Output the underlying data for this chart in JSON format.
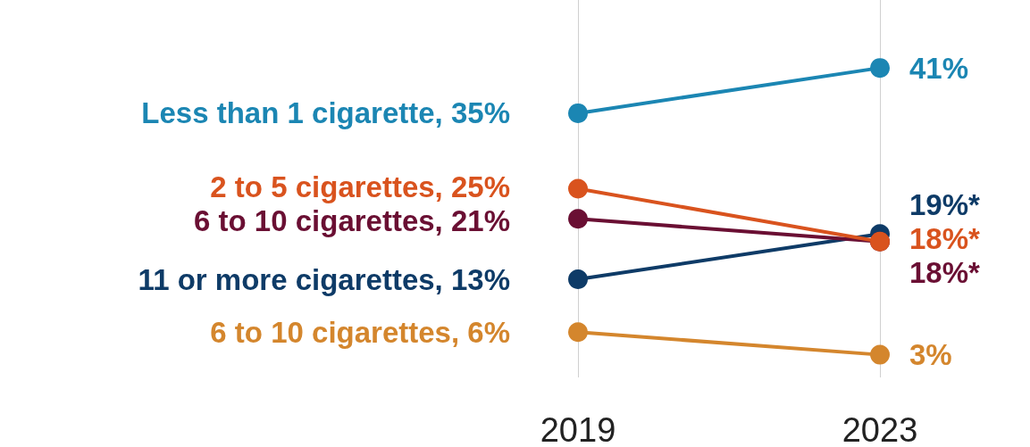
{
  "chart_data": {
    "type": "line",
    "categories": [
      "2019",
      "2023"
    ],
    "grid": "x",
    "marker": "circle",
    "line_style": "solid",
    "legend": false,
    "tick_labels": "x",
    "series": [
      {
        "name": "Less than 1 cigarette,",
        "color": "#1b86b3",
        "values": [
          35,
          41
        ],
        "value_labels": [
          "35%",
          "41%"
        ]
      },
      {
        "name": "2 to 5 cigarettes,",
        "color": "#d9531e",
        "values": [
          25,
          18
        ],
        "value_labels": [
          "25%",
          "18%*"
        ]
      },
      {
        "name": "6 to 10 cigarettes,",
        "color": "#6a0f33",
        "values": [
          21,
          18
        ],
        "value_labels": [
          "21%",
          "18%*"
        ]
      },
      {
        "name": "11 or more cigarettes,",
        "color": "#0e3b67",
        "values": [
          13,
          19
        ],
        "value_labels": [
          "13%",
          "19%*"
        ]
      },
      {
        "name": "6 to 10 cigarettes,",
        "color": "#d4862d",
        "values": [
          6,
          3
        ],
        "value_labels": [
          "6%",
          "3%"
        ]
      }
    ]
  }
}
